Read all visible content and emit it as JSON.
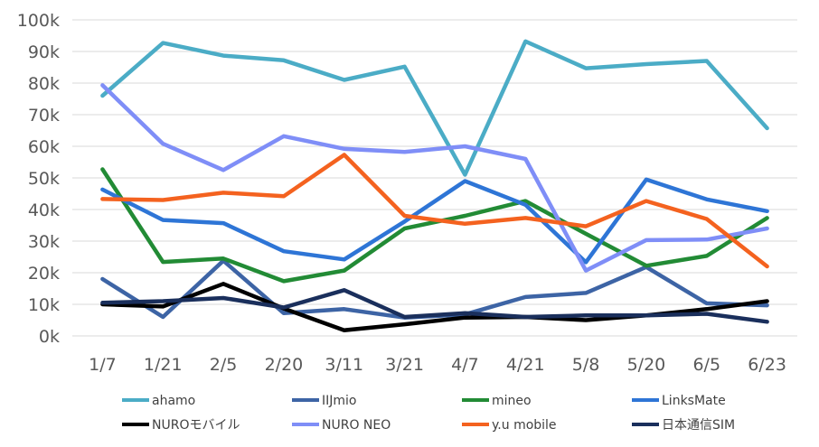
{
  "chart_data": {
    "type": "line",
    "x": [
      "1/7",
      "1/21",
      "2/5",
      "2/20",
      "3/11",
      "3/21",
      "4/7",
      "4/21",
      "5/8",
      "5/20",
      "6/5",
      "6/23"
    ],
    "y_ticks": [
      "0k",
      "10k",
      "20k",
      "30k",
      "40k",
      "50k",
      "60k",
      "70k",
      "80k",
      "90k",
      "100k"
    ],
    "ylim": [
      0,
      100000
    ],
    "grid": true,
    "legend_position": "bottom",
    "series": [
      {
        "name": "ahamo",
        "color": "#4bacc6",
        "values": [
          76000,
          92700,
          88700,
          87200,
          81000,
          85200,
          51000,
          93200,
          84700,
          86000,
          87000,
          65700
        ]
      },
      {
        "name": "IIJmio",
        "color": "#3d64a5",
        "values": [
          18000,
          6000,
          23800,
          7200,
          8500,
          5800,
          6800,
          12300,
          13600,
          21800,
          10300,
          9700
        ]
      },
      {
        "name": "mineo",
        "color": "#228b35",
        "values": [
          52700,
          23400,
          24500,
          17300,
          20700,
          34000,
          38000,
          42700,
          32300,
          22200,
          25300,
          37300
        ]
      },
      {
        "name": "LinksMate",
        "color": "#2e75d6",
        "values": [
          46300,
          36700,
          35700,
          26800,
          24200,
          36200,
          49000,
          41500,
          23300,
          49500,
          43200,
          39500
        ]
      },
      {
        "name": "NUROモバイル",
        "color": "#000000",
        "values": [
          10000,
          9300,
          16500,
          8700,
          1800,
          3700,
          5800,
          6000,
          5000,
          6500,
          8500,
          11000
        ]
      },
      {
        "name": "NURO NEO",
        "color": "#7f8ef7",
        "values": [
          79300,
          60800,
          52500,
          63200,
          59200,
          58200,
          60000,
          56000,
          20700,
          30300,
          30500,
          34000
        ]
      },
      {
        "name": "y.u mobile",
        "color": "#f4621f",
        "values": [
          43300,
          43000,
          45300,
          44200,
          57300,
          38000,
          35500,
          37300,
          34700,
          42700,
          37000,
          22000
        ]
      },
      {
        "name": "日本通信SIM",
        "color": "#1a2f5c",
        "values": [
          10500,
          11000,
          12000,
          9000,
          14500,
          6000,
          7200,
          6000,
          6500,
          6500,
          7000,
          4500
        ]
      }
    ]
  }
}
